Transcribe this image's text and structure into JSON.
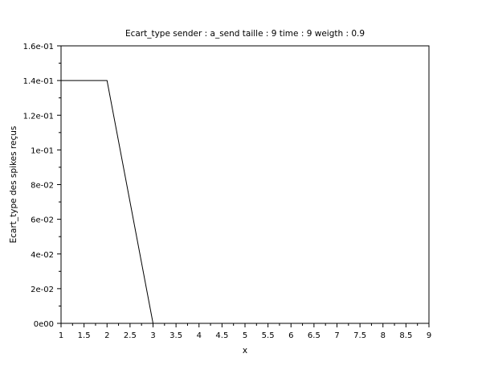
{
  "chart_data": {
    "type": "line",
    "title": "Ecart_type sender : a_send taille : 9 time : 9 weigth : 0.9",
    "xlabel": "x",
    "ylabel": "Ecart_type des spikes reçus",
    "xlim": [
      1,
      9
    ],
    "ylim": [
      0,
      0.16
    ],
    "x_ticks": [
      1,
      1.5,
      2,
      2.5,
      3,
      3.5,
      4,
      4.5,
      5,
      5.5,
      6,
      6.5,
      7,
      7.5,
      8,
      8.5,
      9
    ],
    "x_tick_labels": [
      "1",
      "1.5",
      "2",
      "2.5",
      "3",
      "3.5",
      "4",
      "4.5",
      "5",
      "5.5",
      "6",
      "6.5",
      "7",
      "7.5",
      "8",
      "8.5",
      "9"
    ],
    "y_ticks": [
      0,
      0.02,
      0.04,
      0.06,
      0.08,
      0.1,
      0.12,
      0.14,
      0.16
    ],
    "y_tick_labels": [
      "0e00",
      "2e-02",
      "4e-02",
      "6e-02",
      "8e-02",
      "1e-01",
      "1.2e-01",
      "1.4e-01",
      "1.6e-01"
    ],
    "grid": false,
    "series": [
      {
        "x": [
          1,
          2,
          3,
          4,
          5,
          6,
          7,
          8,
          9
        ],
        "values": [
          0.14,
          0.14,
          0,
          0,
          0,
          0,
          0,
          0,
          0
        ],
        "color": "#000000"
      }
    ]
  }
}
